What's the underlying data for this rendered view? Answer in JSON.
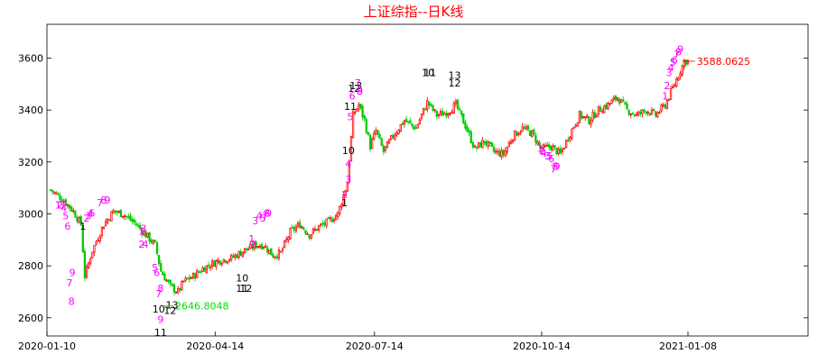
{
  "chart_data": {
    "type": "candlestick",
    "title": "上证综指--日K线",
    "ylim": [
      2530,
      3730
    ],
    "yticks": [
      2600,
      2800,
      3000,
      3200,
      3400,
      3600
    ],
    "xticks": [
      "2020-01-10",
      "2020-04-14",
      "2020-07-14",
      "2020-10-14",
      "2021-01-08"
    ],
    "grid": false,
    "up_color": "#ff0000",
    "down_color": "#00cc00",
    "label_colors": {
      "buy": "#ff00ff",
      "sell": "#000000",
      "high": "#ff0000",
      "low": "#00dd00"
    },
    "max_label": "3588.0625",
    "min_label": "2646.8048",
    "series_close": [
      [
        0,
        3092
      ],
      [
        6,
        3060
      ],
      [
        12,
        3010
      ],
      [
        16,
        2960
      ],
      [
        18,
        2760
      ],
      [
        22,
        2860
      ],
      [
        28,
        2960
      ],
      [
        33,
        3010
      ],
      [
        38,
        3000
      ],
      [
        45,
        2960
      ],
      [
        50,
        2920
      ],
      [
        55,
        2880
      ],
      [
        58,
        2780
      ],
      [
        63,
        2720
      ],
      [
        67,
        2700
      ],
      [
        70,
        2740
      ],
      [
        75,
        2760
      ],
      [
        80,
        2790
      ],
      [
        88,
        2820
      ],
      [
        95,
        2830
      ],
      [
        102,
        2860
      ],
      [
        108,
        2880
      ],
      [
        112,
        2880
      ],
      [
        117,
        2840
      ],
      [
        121,
        2850
      ],
      [
        126,
        2930
      ],
      [
        131,
        2960
      ],
      [
        136,
        2920
      ],
      [
        141,
        2950
      ],
      [
        146,
        2970
      ],
      [
        151,
        3000
      ],
      [
        156,
        3120
      ],
      [
        159,
        3380
      ],
      [
        162,
        3420
      ],
      [
        165,
        3360
      ],
      [
        168,
        3260
      ],
      [
        171,
        3320
      ],
      [
        175,
        3240
      ],
      [
        180,
        3300
      ],
      [
        186,
        3360
      ],
      [
        192,
        3330
      ],
      [
        198,
        3430
      ],
      [
        203,
        3380
      ],
      [
        208,
        3390
      ],
      [
        213,
        3420
      ],
      [
        218,
        3340
      ],
      [
        223,
        3250
      ],
      [
        228,
        3280
      ],
      [
        233,
        3240
      ],
      [
        238,
        3230
      ],
      [
        243,
        3300
      ],
      [
        248,
        3330
      ],
      [
        253,
        3310
      ],
      [
        258,
        3250
      ],
      [
        263,
        3260
      ],
      [
        268,
        3230
      ],
      [
        273,
        3310
      ],
      [
        278,
        3380
      ],
      [
        283,
        3360
      ],
      [
        288,
        3400
      ],
      [
        293,
        3420
      ],
      [
        298,
        3450
      ],
      [
        303,
        3400
      ],
      [
        308,
        3380
      ],
      [
        313,
        3400
      ],
      [
        318,
        3380
      ],
      [
        323,
        3420
      ],
      [
        328,
        3500
      ],
      [
        333,
        3588
      ]
    ],
    "signal_labels": [
      {
        "i": 4,
        "y": 3020,
        "t": "1",
        "c": "buy"
      },
      {
        "i": 5,
        "y": 3020,
        "t": "2",
        "c": "buy"
      },
      {
        "i": 6,
        "y": 3020,
        "t": "3",
        "c": "buy"
      },
      {
        "i": 7,
        "y": 3010,
        "t": "4",
        "c": "buy"
      },
      {
        "i": 8,
        "y": 2980,
        "t": "5",
        "c": "buy"
      },
      {
        "i": 9,
        "y": 2940,
        "t": "6",
        "c": "buy"
      },
      {
        "i": 10,
        "y": 2720,
        "t": "7",
        "c": "buy"
      },
      {
        "i": 11,
        "y": 2650,
        "t": "8",
        "c": "buy"
      },
      {
        "i": 11.5,
        "y": 2760,
        "t": "9",
        "c": "buy"
      },
      {
        "i": 17,
        "y": 2940,
        "t": "1",
        "c": "sell"
      },
      {
        "i": 19,
        "y": 2970,
        "t": "2",
        "c": "buy"
      },
      {
        "i": 20,
        "y": 2980,
        "t": "3",
        "c": "buy"
      },
      {
        "i": 21,
        "y": 2990,
        "t": "4",
        "c": "buy"
      },
      {
        "i": 22,
        "y": 2990,
        "t": "5",
        "c": "buy"
      },
      {
        "i": 26,
        "y": 3030,
        "t": "7",
        "c": "buy"
      },
      {
        "i": 28,
        "y": 3040,
        "t": "8",
        "c": "buy"
      },
      {
        "i": 30,
        "y": 3040,
        "t": "9",
        "c": "buy"
      },
      {
        "i": 48,
        "y": 2920,
        "t": "1",
        "c": "buy"
      },
      {
        "i": 48,
        "y": 2870,
        "t": "2",
        "c": "buy"
      },
      {
        "i": 49,
        "y": 2930,
        "t": "3",
        "c": "buy"
      },
      {
        "i": 50,
        "y": 2870,
        "t": "4",
        "c": "buy"
      },
      {
        "i": 55,
        "y": 2780,
        "t": "5",
        "c": "buy"
      },
      {
        "i": 56,
        "y": 2760,
        "t": "6",
        "c": "buy"
      },
      {
        "i": 57,
        "y": 2680,
        "t": "7",
        "c": "buy"
      },
      {
        "i": 58,
        "y": 2700,
        "t": "8",
        "c": "buy"
      },
      {
        "i": 58,
        "y": 2580,
        "t": "9",
        "c": "buy"
      },
      {
        "i": 57,
        "y": 2620,
        "t": "10",
        "c": "sell"
      },
      {
        "i": 58,
        "y": 2530,
        "t": "11",
        "c": "sell"
      },
      {
        "i": 63,
        "y": 2615,
        "t": "12",
        "c": "sell"
      },
      {
        "i": 64,
        "y": 2635,
        "t": "13",
        "c": "sell"
      },
      {
        "i": 101,
        "y": 2740,
        "t": "10",
        "c": "sell"
      },
      {
        "i": 101,
        "y": 2700,
        "t": "11",
        "c": "sell"
      },
      {
        "i": 103,
        "y": 2700,
        "t": "12",
        "c": "sell"
      },
      {
        "i": 106,
        "y": 2890,
        "t": "1",
        "c": "buy"
      },
      {
        "i": 107,
        "y": 2870,
        "t": "2",
        "c": "buy"
      },
      {
        "i": 108,
        "y": 2960,
        "t": "3",
        "c": "buy"
      },
      {
        "i": 110,
        "y": 2980,
        "t": "4",
        "c": "buy"
      },
      {
        "i": 112,
        "y": 2970,
        "t": "5",
        "c": "buy"
      },
      {
        "i": 113,
        "y": 2980,
        "t": "7",
        "c": "buy"
      },
      {
        "i": 114,
        "y": 2990,
        "t": "8",
        "c": "buy"
      },
      {
        "i": 115,
        "y": 2990,
        "t": "9",
        "c": "buy"
      },
      {
        "i": 155,
        "y": 3030,
        "t": "1",
        "c": "sell"
      },
      {
        "i": 155,
        "y": 3060,
        "t": "2",
        "c": "buy"
      },
      {
        "i": 157,
        "y": 3120,
        "t": "3",
        "c": "buy"
      },
      {
        "i": 157,
        "y": 3180,
        "t": "4",
        "c": "buy"
      },
      {
        "i": 157,
        "y": 3230,
        "t": "10",
        "c": "sell"
      },
      {
        "i": 158,
        "y": 3360,
        "t": "5",
        "c": "buy"
      },
      {
        "i": 158,
        "y": 3400,
        "t": "11",
        "c": "sell"
      },
      {
        "i": 159,
        "y": 3440,
        "t": "6",
        "c": "buy"
      },
      {
        "i": 160,
        "y": 3470,
        "t": "12",
        "c": "sell"
      },
      {
        "i": 161,
        "y": 3480,
        "t": "13",
        "c": "sell"
      },
      {
        "i": 162,
        "y": 3490,
        "t": "7",
        "c": "buy"
      },
      {
        "i": 163,
        "y": 3460,
        "t": "8",
        "c": "buy"
      },
      {
        "i": 163,
        "y": 3460,
        "t": "9",
        "c": "buy"
      },
      {
        "i": 199,
        "y": 3530,
        "t": "10",
        "c": "sell"
      },
      {
        "i": 200,
        "y": 3530,
        "t": "11",
        "c": "sell"
      },
      {
        "i": 213,
        "y": 3490,
        "t": "12",
        "c": "sell"
      },
      {
        "i": 213,
        "y": 3520,
        "t": "13",
        "c": "sell"
      },
      {
        "i": 258,
        "y": 3240,
        "t": "1",
        "c": "buy"
      },
      {
        "i": 259,
        "y": 3230,
        "t": "2",
        "c": "buy"
      },
      {
        "i": 260,
        "y": 3220,
        "t": "4",
        "c": "buy"
      },
      {
        "i": 262,
        "y": 3210,
        "t": "3",
        "c": "buy"
      },
      {
        "i": 263,
        "y": 3210,
        "t": "5",
        "c": "buy"
      },
      {
        "i": 264,
        "y": 3200,
        "t": "6",
        "c": "buy"
      },
      {
        "i": 265,
        "y": 3160,
        "t": "7",
        "c": "buy"
      },
      {
        "i": 266,
        "y": 3170,
        "t": "8",
        "c": "buy"
      },
      {
        "i": 267,
        "y": 3170,
        "t": "9",
        "c": "buy"
      },
      {
        "i": 324,
        "y": 3440,
        "t": "1",
        "c": "buy"
      },
      {
        "i": 325,
        "y": 3480,
        "t": "2",
        "c": "buy"
      },
      {
        "i": 326,
        "y": 3530,
        "t": "3",
        "c": "buy"
      },
      {
        "i": 327,
        "y": 3550,
        "t": "4",
        "c": "buy"
      },
      {
        "i": 328,
        "y": 3570,
        "t": "5",
        "c": "buy"
      },
      {
        "i": 329,
        "y": 3580,
        "t": "6",
        "c": "buy"
      },
      {
        "i": 330,
        "y": 3600,
        "t": "7",
        "c": "buy"
      },
      {
        "i": 331,
        "y": 3610,
        "t": "8",
        "c": "buy"
      },
      {
        "i": 332,
        "y": 3620,
        "t": "9",
        "c": "buy"
      }
    ],
    "n_bars": 336
  }
}
